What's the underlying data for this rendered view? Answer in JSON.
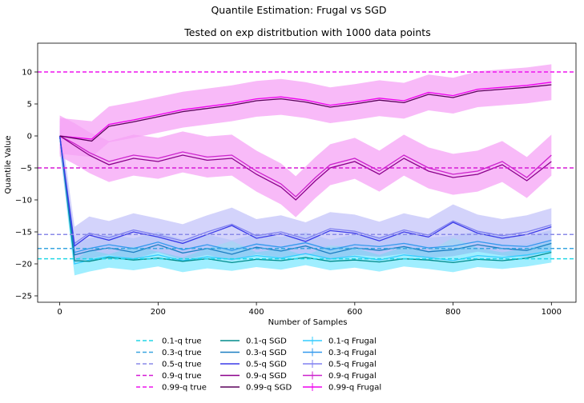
{
  "chart_data": {
    "type": "line",
    "suptitle": "Quantile Estimation: Frugal vs SGD",
    "title": "Tested on exp distritbution with 1000 data points",
    "xlabel": "Number of Samples",
    "ylabel": "Quantile Value",
    "xlim": [
      -45,
      1050
    ],
    "ylim": [
      -26,
      14.5
    ],
    "xticks": [
      0,
      200,
      400,
      600,
      800,
      1000
    ],
    "yticks": [
      -25,
      -20,
      -15,
      -10,
      -5,
      0,
      5,
      10
    ],
    "grid": false,
    "legend_placement": "below-plot",
    "true_lines": [
      {
        "name": "0.1-q true",
        "value": -19.2,
        "color": "#22d6e6"
      },
      {
        "name": "0.3-q true",
        "value": -17.6,
        "color": "#3aa6e0"
      },
      {
        "name": "0.5-q true",
        "value": -15.4,
        "color": "#8a8ae8"
      },
      {
        "name": "0.9-q true",
        "value": -5.0,
        "color": "#d51ad5"
      },
      {
        "name": "0.99-q true",
        "value": 10.0,
        "color": "#ee14ee"
      }
    ],
    "sgd_series": [
      {
        "name": "0.1-q SGD",
        "color": "#008b8b",
        "x": [
          0,
          30,
          60,
          100,
          150,
          200,
          250,
          300,
          350,
          400,
          450,
          500,
          550,
          600,
          650,
          700,
          750,
          800,
          850,
          900,
          950,
          1000
        ],
        "y": [
          0,
          -19.5,
          -19.6,
          -19.0,
          -19.4,
          -19.1,
          -19.6,
          -19.2,
          -19.8,
          -19.3,
          -19.5,
          -19.0,
          -19.6,
          -19.4,
          -19.7,
          -19.2,
          -19.4,
          -19.8,
          -19.3,
          -19.5,
          -19.1,
          -18.2
        ]
      },
      {
        "name": "0.3-q SGD",
        "color": "#1b7ec2",
        "x": [
          0,
          30,
          60,
          100,
          150,
          200,
          250,
          300,
          350,
          400,
          450,
          500,
          550,
          600,
          650,
          700,
          750,
          800,
          850,
          900,
          950,
          1000
        ],
        "y": [
          0,
          -18.6,
          -18.0,
          -17.5,
          -18.2,
          -17.0,
          -18.3,
          -17.6,
          -18.5,
          -17.4,
          -18.0,
          -17.2,
          -18.4,
          -17.5,
          -17.9,
          -17.3,
          -18.1,
          -17.8,
          -17.0,
          -17.6,
          -17.9,
          -16.8
        ]
      },
      {
        "name": "0.5-q SGD",
        "color": "#3a3ae8",
        "x": [
          0,
          30,
          60,
          100,
          150,
          200,
          250,
          300,
          350,
          400,
          450,
          500,
          550,
          600,
          650,
          700,
          750,
          800,
          850,
          900,
          950,
          1000
        ],
        "y": [
          0,
          -17.2,
          -15.5,
          -16.3,
          -15.0,
          -15.8,
          -16.8,
          -15.4,
          -14.0,
          -16.0,
          -15.3,
          -16.5,
          -14.8,
          -15.2,
          -16.4,
          -15.0,
          -15.8,
          -13.5,
          -15.2,
          -16.0,
          -15.4,
          -14.2
        ]
      },
      {
        "name": "0.9-q SGD",
        "color": "#8b008b",
        "x": [
          0,
          30,
          60,
          100,
          150,
          200,
          250,
          300,
          350,
          400,
          450,
          480,
          520,
          550,
          600,
          650,
          700,
          750,
          800,
          850,
          900,
          950,
          1000
        ],
        "y": [
          0,
          -1.5,
          -3.0,
          -4.5,
          -3.5,
          -4.0,
          -3.0,
          -3.8,
          -3.5,
          -6.0,
          -8.0,
          -10.0,
          -7.0,
          -5.0,
          -4.0,
          -6.0,
          -3.5,
          -5.5,
          -6.5,
          -6.0,
          -4.5,
          -7.0,
          -4.0
        ]
      },
      {
        "name": "0.99-q SGD",
        "color": "#5a005a",
        "x": [
          0,
          65,
          100,
          150,
          200,
          250,
          300,
          350,
          400,
          450,
          500,
          550,
          600,
          650,
          700,
          750,
          800,
          850,
          900,
          950,
          1000
        ],
        "y": [
          0,
          -0.8,
          1.5,
          2.2,
          3.0,
          3.8,
          4.3,
          4.8,
          5.5,
          5.8,
          5.3,
          4.5,
          5.0,
          5.6,
          5.2,
          6.5,
          6.0,
          7.0,
          7.3,
          7.6,
          8.0
        ]
      }
    ],
    "frugal_series": [
      {
        "name": "0.1-q Frugal",
        "color": "#33ccff",
        "band_color": "#7fe8ff",
        "band_width": 1.8,
        "x": [
          0,
          30,
          60,
          100,
          150,
          200,
          250,
          300,
          350,
          400,
          450,
          500,
          550,
          600,
          650,
          700,
          750,
          800,
          850,
          900,
          950,
          1000
        ],
        "y": [
          0,
          -20.0,
          -19.4,
          -18.8,
          -19.2,
          -18.6,
          -19.5,
          -18.9,
          -19.3,
          -18.7,
          -19.1,
          -18.4,
          -19.2,
          -18.8,
          -19.4,
          -18.6,
          -19.0,
          -19.5,
          -18.7,
          -19.0,
          -18.6,
          -18.0
        ]
      },
      {
        "name": "0.3-q Frugal",
        "color": "#3399ee",
        "band_color": "#8fc4f2",
        "band_width": 1.6,
        "x": [
          0,
          30,
          60,
          100,
          150,
          200,
          250,
          300,
          350,
          400,
          450,
          500,
          550,
          600,
          650,
          700,
          750,
          800,
          850,
          900,
          950,
          1000
        ],
        "y": [
          0,
          -18.2,
          -17.6,
          -17.0,
          -17.6,
          -16.6,
          -17.8,
          -17.0,
          -17.9,
          -16.9,
          -17.4,
          -16.7,
          -17.8,
          -17.0,
          -17.3,
          -16.8,
          -17.5,
          -17.2,
          -16.5,
          -17.1,
          -17.3,
          -16.3
        ]
      },
      {
        "name": "0.5-q Frugal",
        "color": "#8080f0",
        "band_color": "#c4c4fa",
        "band_width": 2.6,
        "x": [
          0,
          30,
          60,
          100,
          150,
          200,
          250,
          300,
          350,
          400,
          450,
          500,
          550,
          600,
          650,
          700,
          750,
          800,
          850,
          900,
          950,
          1000
        ],
        "y": [
          0,
          -16.8,
          -15.2,
          -15.9,
          -14.7,
          -15.5,
          -16.4,
          -15.0,
          -13.8,
          -15.6,
          -15.0,
          -16.1,
          -14.5,
          -14.9,
          -16.0,
          -14.7,
          -15.5,
          -13.3,
          -14.9,
          -15.6,
          -15.0,
          -13.9
        ]
      },
      {
        "name": "0.9-q Frugal",
        "color": "#cc22cc",
        "band_color": "#f5a3f5",
        "band_width": 3.2,
        "x": [
          0,
          30,
          60,
          100,
          150,
          200,
          250,
          300,
          350,
          400,
          450,
          480,
          520,
          550,
          600,
          650,
          700,
          750,
          800,
          850,
          900,
          950,
          1000
        ],
        "y": [
          0,
          -1.2,
          -2.6,
          -4.0,
          -3.0,
          -3.5,
          -2.5,
          -3.3,
          -3.0,
          -5.5,
          -7.5,
          -9.5,
          -6.5,
          -4.5,
          -3.5,
          -5.5,
          -3.0,
          -5.0,
          -6.0,
          -5.5,
          -4.0,
          -6.5,
          -3.0
        ]
      },
      {
        "name": "0.99-q Frugal",
        "color": "#ee00ee",
        "band_color": "#f5a3f5",
        "band_width": 2.8,
        "x": [
          0,
          65,
          100,
          150,
          200,
          250,
          300,
          350,
          400,
          450,
          500,
          550,
          600,
          650,
          700,
          750,
          800,
          850,
          900,
          950,
          1000
        ],
        "y": [
          0,
          -0.5,
          1.8,
          2.5,
          3.3,
          4.1,
          4.6,
          5.1,
          5.8,
          6.1,
          5.6,
          4.8,
          5.3,
          5.9,
          5.5,
          6.8,
          6.3,
          7.3,
          7.6,
          7.9,
          8.4
        ]
      }
    ],
    "legend_columns": [
      [
        "0.1-q true",
        "0.3-q true",
        "0.5-q true",
        "0.9-q true",
        "0.99-q true"
      ],
      [
        "0.1-q SGD",
        "0.3-q SGD",
        "0.5-q SGD",
        "0.9-q SGD",
        "0.99-q SGD"
      ],
      [
        "0.1-q Frugal",
        "0.3-q Frugal",
        "0.5-q Frugal",
        "0.9-q Frugal",
        "0.99-q Frugal"
      ]
    ]
  }
}
